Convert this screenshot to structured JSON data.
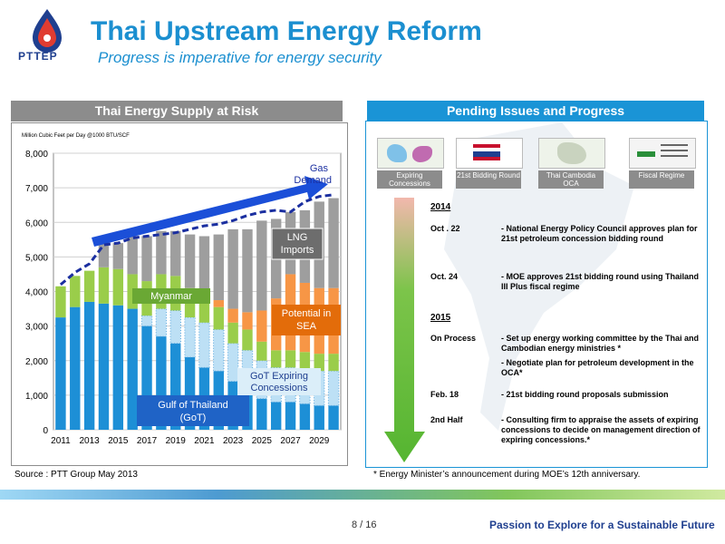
{
  "header": {
    "logo_text": "PTTEP",
    "title": "Thai Upstream Energy Reform",
    "subtitle": "Progress is imperative for energy security"
  },
  "left_panel": {
    "banner": "Thai Energy Supply at Risk"
  },
  "right_panel": {
    "banner": "Pending Issues and Progress",
    "tiles": [
      {
        "label": "Expiring Concessions",
        "icon": "map-icon"
      },
      {
        "label": "21st Bidding Round",
        "icon": "flag-icon"
      },
      {
        "label": "Thai Cambodia OCA",
        "icon": "map-icon"
      },
      {
        "label": "Fiscal Regime",
        "icon": "chart-icon"
      }
    ],
    "timeline": [
      {
        "year": "2014"
      },
      {
        "date": "Oct . 22",
        "desc": "- National Energy Policy Council approves plan for 21st petroleum concession bidding round"
      },
      {
        "date": "Oct. 24",
        "desc": "- MOE approves 21st bidding round using Thailand III Plus fiscal regime"
      },
      {
        "year": "2015"
      },
      {
        "date": "On Process",
        "desc": "- Set up energy working committee by the Thai and Cambodian energy ministries *",
        "desc2": "- Negotiate plan for petroleum development in the OCA*"
      },
      {
        "date": "Feb. 18",
        "desc": "- 21st bidding round proposals submission"
      },
      {
        "date": "2nd Half",
        "desc": "- Consulting firm to appraise the assets of expiring concessions to decide on management direction of expiring concessions.*"
      }
    ]
  },
  "source": "Source : PTT Group May 2013",
  "footnote": "* Energy Minister’s announcement during MOE’s 12th anniversary.",
  "footer": {
    "page": "8 / 16",
    "tagline": "Passion to Explore for a Sustainable Future"
  },
  "chart_data": {
    "type": "bar",
    "stacked": true,
    "unit_label": "Million Cubic Feet per Day @1000 BTU/SCF",
    "x": [
      2011,
      2012,
      2013,
      2014,
      2015,
      2016,
      2017,
      2018,
      2019,
      2020,
      2021,
      2022,
      2023,
      2024,
      2025,
      2026,
      2027,
      2028,
      2029,
      2030
    ],
    "x_ticks": [
      "2011",
      "2013",
      "2015",
      "2017",
      "2019",
      "2021",
      "2023",
      "2025",
      "2027",
      "2029"
    ],
    "y_ticks": [
      "0",
      "1,000",
      "2,000",
      "3,000",
      "4,000",
      "5,000",
      "6,000",
      "7,000",
      "8,000"
    ],
    "ylim": [
      0,
      8000
    ],
    "series": [
      {
        "name": "Gulf of Thailand (GoT)",
        "color": "#1d8fd6",
        "values": [
          3250,
          3550,
          3700,
          3650,
          3600,
          3500,
          3000,
          2700,
          2500,
          2100,
          1800,
          1700,
          1400,
          1100,
          900,
          800,
          800,
          750,
          700,
          700
        ]
      },
      {
        "name": "GoT Expiring Concessions",
        "color": "#bde0f5",
        "values": [
          0,
          0,
          0,
          0,
          0,
          0,
          300,
          800,
          950,
          1150,
          1300,
          1200,
          1100,
          1200,
          1100,
          1000,
          1000,
          1000,
          1000,
          1000
        ]
      },
      {
        "name": "Myanmar",
        "color": "#9acd4a",
        "values": [
          900,
          900,
          900,
          1050,
          1050,
          1000,
          1000,
          1000,
          1000,
          850,
          700,
          650,
          600,
          600,
          550,
          500,
          500,
          500,
          500,
          500
        ]
      },
      {
        "name": "Potential in SEA",
        "color": "#f79646",
        "values": [
          0,
          0,
          0,
          0,
          0,
          0,
          0,
          0,
          0,
          0,
          100,
          200,
          400,
          500,
          900,
          1500,
          2200,
          2000,
          1900,
          1900
        ]
      },
      {
        "name": "LNG Imports",
        "color": "#9e9e9e",
        "values": [
          0,
          0,
          0,
          700,
          750,
          1100,
          1300,
          1250,
          1300,
          1550,
          1700,
          1900,
          2300,
          2400,
          2600,
          2300,
          1800,
          2100,
          2500,
          2600
        ]
      }
    ],
    "demand": {
      "name": "Gas Demand",
      "values": [
        4200,
        4550,
        4800,
        5350,
        5400,
        5550,
        5600,
        5650,
        5700,
        5800,
        5900,
        5950,
        6050,
        6200,
        6300,
        6350,
        6300,
        6600,
        6750,
        6800
      ]
    },
    "labels": [
      "Gas Demand",
      "LNG Imports",
      "Myanmar",
      "Potential in SEA",
      "GoT Expiring Concessions",
      "Gulf of Thailand (GoT)"
    ]
  }
}
